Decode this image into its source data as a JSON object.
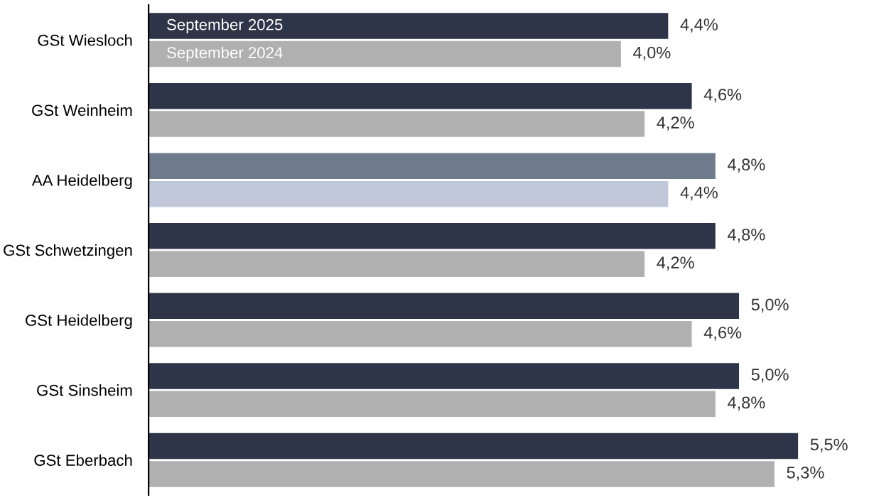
{
  "chart_data": {
    "type": "bar",
    "orientation": "horizontal",
    "categories": [
      "GSt Wiesloch",
      "GSt Weinheim",
      "AA Heidelberg",
      "GSt Schwetzingen",
      "GSt Heidelberg",
      "GSt Sinsheim",
      "GSt Eberbach"
    ],
    "series": [
      {
        "name": "September 2025",
        "color": "#2e3548",
        "colors": [
          null,
          null,
          "#6f7a8d",
          null,
          null,
          null,
          null
        ],
        "values": [
          4.4,
          4.6,
          4.8,
          4.8,
          5.0,
          5.0,
          5.5
        ],
        "value_labels": [
          "4,4%",
          "4,6%",
          "4,8%",
          "4,8%",
          "5,0%",
          "5,0%",
          "5,5%"
        ]
      },
      {
        "name": "September 2024",
        "color": "#b0b0b0",
        "colors": [
          null,
          null,
          "#c0c8da",
          null,
          null,
          null,
          null
        ],
        "values": [
          4.0,
          4.2,
          4.4,
          4.2,
          4.6,
          4.8,
          5.3
        ],
        "value_labels": [
          "4,0%",
          "4,2%",
          "4,4%",
          "4,2%",
          "4,6%",
          "4,8%",
          "5,3%"
        ]
      }
    ],
    "grid": false
  }
}
